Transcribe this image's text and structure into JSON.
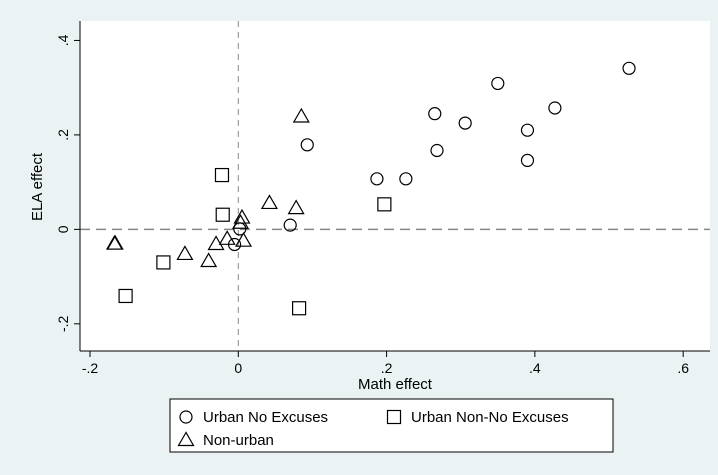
{
  "chart_data": {
    "type": "scatter",
    "title": "",
    "xlabel": "Math effect",
    "ylabel": "ELA effect",
    "xlim": [
      -0.2,
      0.62
    ],
    "ylim": [
      -0.23,
      0.42
    ],
    "x_ticks": [
      {
        "value": -0.2,
        "label": "-.2"
      },
      {
        "value": 0,
        "label": "0"
      },
      {
        "value": 0.2,
        "label": ".2"
      },
      {
        "value": 0.4,
        "label": ".4"
      },
      {
        "value": 0.6,
        "label": ".6"
      }
    ],
    "y_ticks": [
      {
        "value": -0.2,
        "label": "-.2"
      },
      {
        "value": 0,
        "label": "0"
      },
      {
        "value": 0.2,
        "label": ".2"
      },
      {
        "value": 0.4,
        "label": ".4"
      }
    ],
    "reference_lines": {
      "x": 0,
      "y": 0,
      "style": "dashed"
    },
    "grid": false,
    "legend_position": "bottom",
    "series": [
      {
        "name": "Urban No Excuses",
        "marker": "circle",
        "points": [
          {
            "x": 0.527,
            "y": 0.341
          },
          {
            "x": 0.35,
            "y": 0.309
          },
          {
            "x": 0.427,
            "y": 0.257
          },
          {
            "x": 0.265,
            "y": 0.245
          },
          {
            "x": 0.306,
            "y": 0.225
          },
          {
            "x": 0.39,
            "y": 0.21
          },
          {
            "x": 0.093,
            "y": 0.179
          },
          {
            "x": 0.268,
            "y": 0.167
          },
          {
            "x": 0.39,
            "y": 0.146
          },
          {
            "x": 0.187,
            "y": 0.107
          },
          {
            "x": 0.226,
            "y": 0.107
          },
          {
            "x": 0.07,
            "y": 0.009
          },
          {
            "x": 0.002,
            "y": 0.001
          },
          {
            "x": -0.005,
            "y": -0.032
          }
        ]
      },
      {
        "name": "Urban Non-No Excuses",
        "marker": "square",
        "points": [
          {
            "x": -0.022,
            "y": 0.115
          },
          {
            "x": 0.197,
            "y": 0.053
          },
          {
            "x": -0.021,
            "y": 0.031
          },
          {
            "x": -0.101,
            "y": -0.07
          },
          {
            "x": -0.152,
            "y": -0.141
          },
          {
            "x": 0.082,
            "y": -0.167
          }
        ]
      },
      {
        "name": "Non-urban",
        "marker": "triangle",
        "points": [
          {
            "x": 0.085,
            "y": 0.239
          },
          {
            "x": 0.042,
            "y": 0.056
          },
          {
            "x": 0.078,
            "y": 0.045
          },
          {
            "x": 0.005,
            "y": 0.025
          },
          {
            "x": 0.003,
            "y": 0.014
          },
          {
            "x": -0.167,
            "y": -0.03
          },
          {
            "x": -0.166,
            "y": -0.03
          },
          {
            "x": -0.03,
            "y": -0.031
          },
          {
            "x": -0.015,
            "y": -0.02
          },
          {
            "x": 0.007,
            "y": -0.024
          },
          {
            "x": -0.072,
            "y": -0.052
          },
          {
            "x": -0.04,
            "y": -0.067
          }
        ]
      }
    ]
  }
}
